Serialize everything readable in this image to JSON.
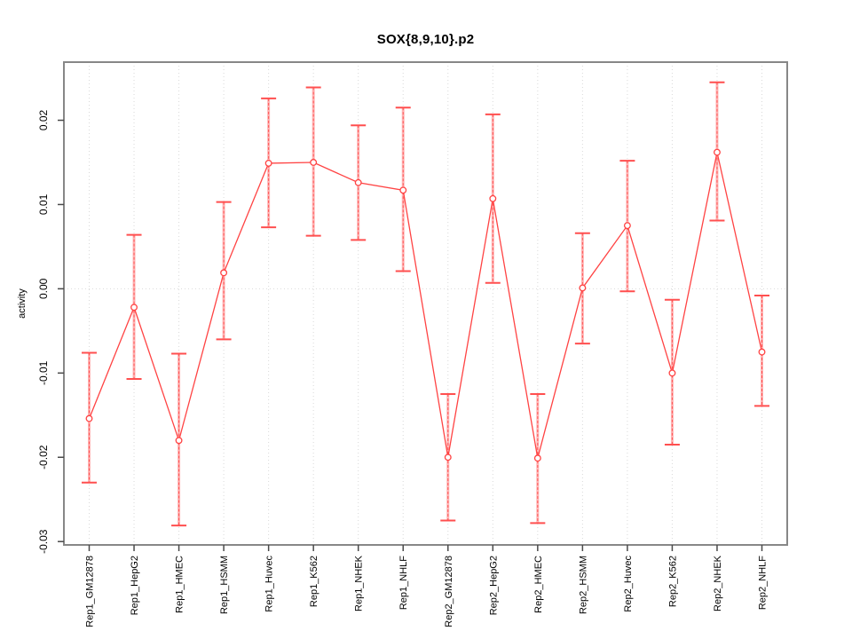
{
  "title": "SOX{8,9,10}.p2",
  "chart_data": {
    "type": "line",
    "title": "SOX{8,9,10}.p2",
    "xlabel": "",
    "ylabel": "activity",
    "ylim": [
      -0.0304,
      0.0269
    ],
    "yticks": [
      0.02,
      0.01,
      0.0,
      -0.01,
      -0.02,
      -0.03
    ],
    "ytick_labels": [
      "0.02",
      "0.01",
      "0.00",
      "-0.01",
      "-0.02",
      "-0.03"
    ],
    "grid": "vertical dotted gridline at each category; dotted horizontal line at y=0; no legend",
    "marker": "open-circle",
    "error_bars": true,
    "categories": [
      "Rep1_GM12878",
      "Rep1_HepG2",
      "Rep1_HMEC",
      "Rep1_HSMM",
      "Rep1_Huvec",
      "Rep1_K562",
      "Rep1_NHEK",
      "Rep1_NHLF",
      "Rep2_GM12878",
      "Rep2_HepG2",
      "Rep2_HMEC",
      "Rep2_HSMM",
      "Rep2_Huvec",
      "Rep2_K562",
      "Rep2_NHEK",
      "Rep2_NHLF"
    ],
    "series": [
      {
        "name": "activity",
        "values": [
          -0.0154,
          -0.0022,
          -0.018,
          0.0019,
          0.0149,
          0.015,
          0.0126,
          0.0117,
          -0.02,
          0.0107,
          -0.0201,
          0.0001,
          0.0075,
          -0.01,
          0.0162,
          -0.0075
        ],
        "err_high": [
          -0.0076,
          0.0064,
          -0.0077,
          0.0103,
          0.0226,
          0.0239,
          0.0194,
          0.0215,
          -0.0125,
          0.0207,
          -0.0125,
          0.0066,
          0.0152,
          -0.0013,
          0.0245,
          -0.0008
        ],
        "err_low": [
          -0.023,
          -0.0107,
          -0.0281,
          -0.006,
          0.0073,
          0.0063,
          0.0058,
          0.0021,
          -0.0275,
          0.0007,
          -0.0278,
          -0.0065,
          -0.0003,
          -0.0185,
          0.0081,
          -0.0139
        ]
      }
    ],
    "colors": {
      "line": "#ff4343",
      "error_stem": "#ff9d9d",
      "error_cap": "#ff4f4f",
      "box": "#878787",
      "grid": "#d9d9d9",
      "tick": "#4a4a4a",
      "text": "#000000"
    }
  }
}
